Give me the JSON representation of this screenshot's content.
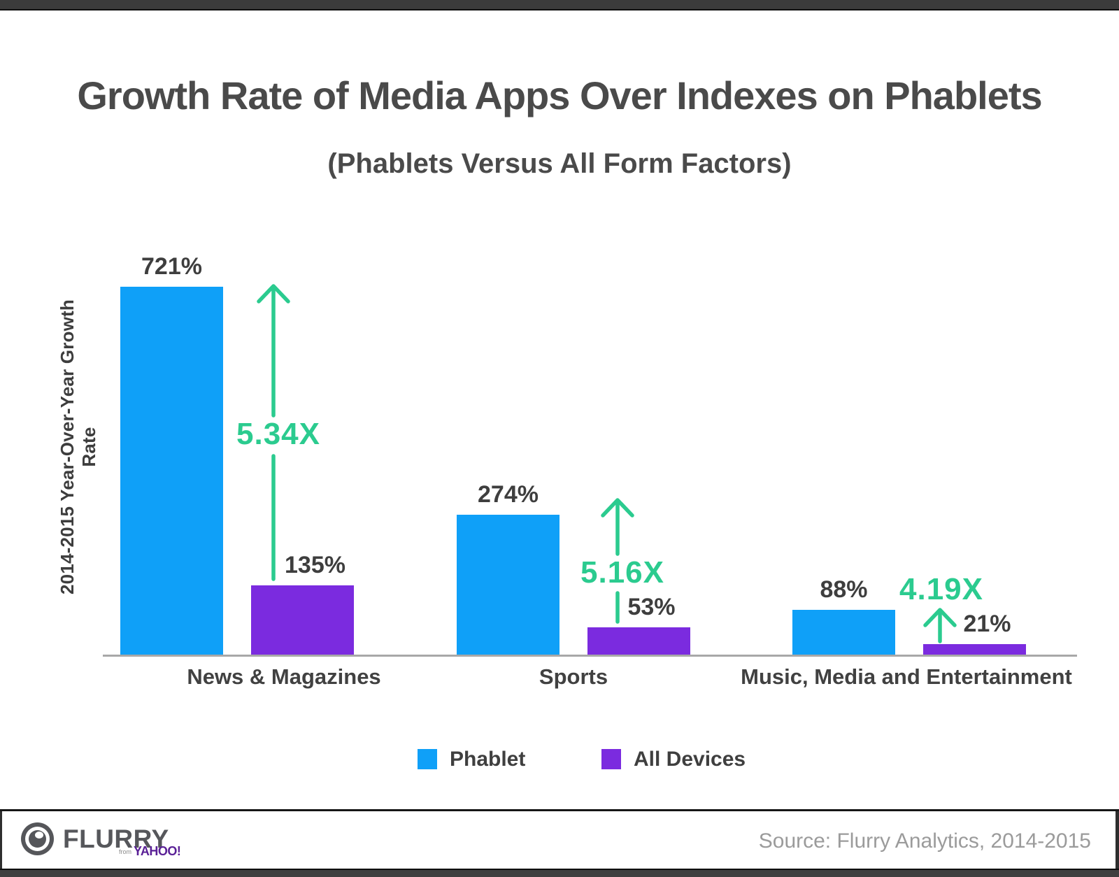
{
  "header": {
    "title": "Growth Rate of Media Apps Over Indexes on Phablets",
    "subtitle": "(Phablets Versus All Form Factors)"
  },
  "chart_data": {
    "type": "bar",
    "title": "Growth Rate of Media Apps Over Indexes on Phablets",
    "subtitle": "(Phablets Versus All Form Factors)",
    "ylabel": "2014-2015 Year-Over-Year Growth Rate",
    "xlabel": "",
    "grid": false,
    "legend_position": "bottom",
    "categories": [
      "News & Magazines",
      "Sports",
      "Music, Media and Entertainment"
    ],
    "series": [
      {
        "name": "Phablet",
        "color": "#0FA0F8",
        "values": [
          721,
          274,
          88
        ],
        "value_labels": [
          "721%",
          "274%",
          "88%"
        ]
      },
      {
        "name": "All Devices",
        "color": "#7B2BDF",
        "values": [
          135,
          53,
          21
        ],
        "value_labels": [
          "135%",
          "53%",
          "21%"
        ]
      }
    ],
    "multipliers": {
      "labels": [
        "5.34X",
        "5.16X",
        "4.19X"
      ],
      "color": "#2BCB8F"
    },
    "unit": "%"
  },
  "legend": {
    "items": [
      {
        "label": "Phablet",
        "color": "#0FA0F8"
      },
      {
        "label": "All Devices",
        "color": "#7B2BDF"
      }
    ]
  },
  "footer": {
    "logo_text": "FLURRY",
    "logo_sub_prefix": "from",
    "logo_sub_brand": "YAHOO!",
    "source": "Source: Flurry Analytics, 2014-2015"
  },
  "colors": {
    "phablet_blue": "#0FA0F8",
    "all_devices_purple": "#7B2BDF",
    "growth_green": "#2BCB8F",
    "chrome_bar": "#3b3b3b",
    "text_dark": "#414141",
    "source_gray": "#9b9b9b"
  }
}
